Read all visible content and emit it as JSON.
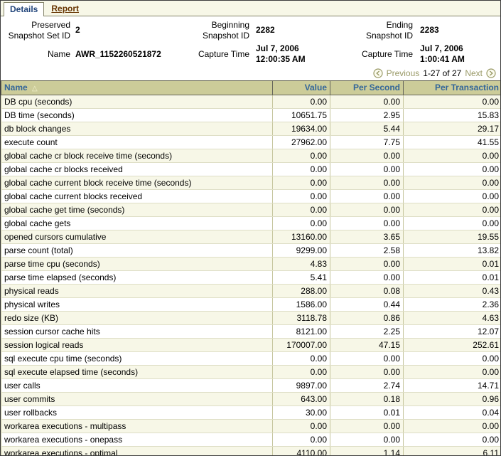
{
  "tabs": [
    {
      "label": "Details",
      "active": true
    },
    {
      "label": "Report",
      "active": false
    }
  ],
  "header": {
    "fields": [
      {
        "label": "Preserved Snapshot Set ID",
        "value": "2"
      },
      {
        "label": "Beginning Snapshot ID",
        "value": "2282"
      },
      {
        "label": "Ending Snapshot ID",
        "value": "2283"
      },
      {
        "label": "Name",
        "value": "AWR_1152260521872"
      },
      {
        "label": "Capture Time",
        "value": "Jul 7, 2006 12:00:35 AM"
      },
      {
        "label": "Capture Time",
        "value": "Jul 7, 2006 1:00:41 AM"
      }
    ]
  },
  "pagination": {
    "previous_label": "Previous",
    "range_text": "1-27 of 27",
    "next_label": "Next"
  },
  "table": {
    "columns": [
      "Name",
      "Value",
      "Per Second",
      "Per Transaction"
    ],
    "sort_column": "Name",
    "sort_direction": "ascending",
    "rows": [
      [
        "DB cpu (seconds)",
        "0.00",
        "0.00",
        "0.00"
      ],
      [
        "DB time (seconds)",
        "10651.75",
        "2.95",
        "15.83"
      ],
      [
        "db block changes",
        "19634.00",
        "5.44",
        "29.17"
      ],
      [
        "execute count",
        "27962.00",
        "7.75",
        "41.55"
      ],
      [
        "global cache cr block receive time (seconds)",
        "0.00",
        "0.00",
        "0.00"
      ],
      [
        "global cache cr blocks received",
        "0.00",
        "0.00",
        "0.00"
      ],
      [
        "global cache current block receive time (seconds)",
        "0.00",
        "0.00",
        "0.00"
      ],
      [
        "global cache current blocks received",
        "0.00",
        "0.00",
        "0.00"
      ],
      [
        "global cache get time (seconds)",
        "0.00",
        "0.00",
        "0.00"
      ],
      [
        "global cache gets",
        "0.00",
        "0.00",
        "0.00"
      ],
      [
        "opened cursors cumulative",
        "13160.00",
        "3.65",
        "19.55"
      ],
      [
        "parse count (total)",
        "9299.00",
        "2.58",
        "13.82"
      ],
      [
        "parse time cpu (seconds)",
        "4.83",
        "0.00",
        "0.01"
      ],
      [
        "parse time elapsed (seconds)",
        "5.41",
        "0.00",
        "0.01"
      ],
      [
        "physical reads",
        "288.00",
        "0.08",
        "0.43"
      ],
      [
        "physical writes",
        "1586.00",
        "0.44",
        "2.36"
      ],
      [
        "redo size (KB)",
        "3118.78",
        "0.86",
        "4.63"
      ],
      [
        "session cursor cache hits",
        "8121.00",
        "2.25",
        "12.07"
      ],
      [
        "session logical reads",
        "170007.00",
        "47.15",
        "252.61"
      ],
      [
        "sql execute cpu time (seconds)",
        "0.00",
        "0.00",
        "0.00"
      ],
      [
        "sql execute elapsed time (seconds)",
        "0.00",
        "0.00",
        "0.00"
      ],
      [
        "user calls",
        "9897.00",
        "2.74",
        "14.71"
      ],
      [
        "user commits",
        "643.00",
        "0.18",
        "0.96"
      ],
      [
        "user rollbacks",
        "30.00",
        "0.01",
        "0.04"
      ],
      [
        "workarea executions - multipass",
        "0.00",
        "0.00",
        "0.00"
      ],
      [
        "workarea executions - onepass",
        "0.00",
        "0.00",
        "0.00"
      ],
      [
        "workarea executions - optimal",
        "4110.00",
        "1.14",
        "6.11"
      ]
    ]
  },
  "colors": {
    "tab_bar_bg": "#f7f7e7",
    "table_header_bg": "#cccc99",
    "table_header_text": "#336699",
    "alt_row_bg": "#f7f7e7",
    "link_brown": "#663300",
    "disabled_nav": "#999966"
  }
}
